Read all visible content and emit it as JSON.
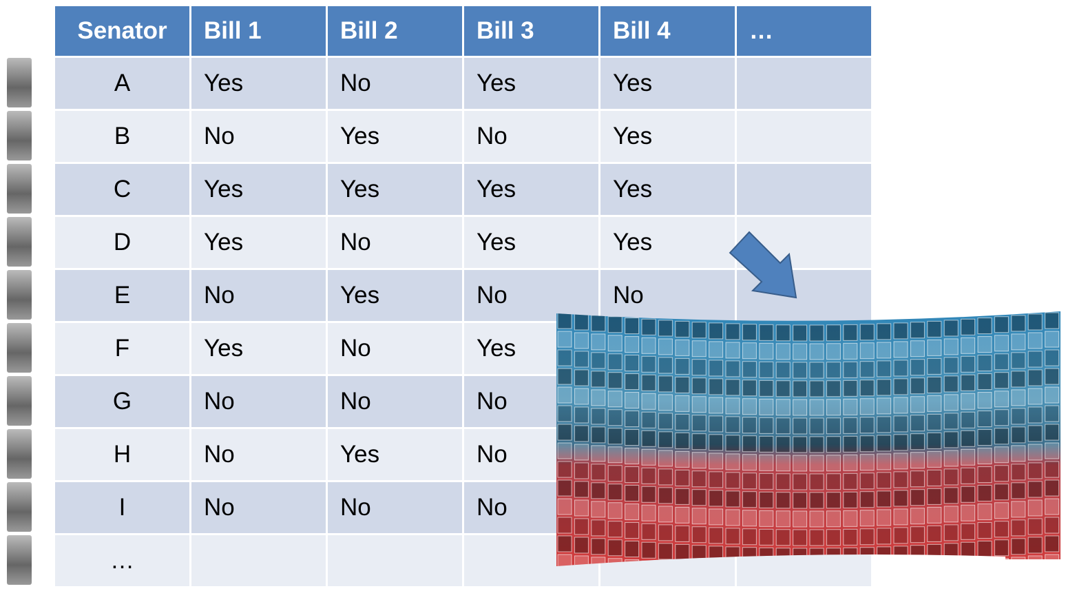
{
  "table": {
    "header": [
      "Senator",
      "Bill 1",
      "Bill 2",
      "Bill 3",
      "Bill 4",
      "…"
    ],
    "rows": [
      [
        "A",
        "Yes",
        "No",
        "Yes",
        "Yes"
      ],
      [
        "B",
        "No",
        "Yes",
        "No",
        "Yes"
      ],
      [
        "C",
        "Yes",
        "Yes",
        "Yes",
        "Yes"
      ],
      [
        "D",
        "Yes",
        "No",
        "Yes",
        "Yes"
      ],
      [
        "E",
        "No",
        "Yes",
        "No",
        "No"
      ],
      [
        "F",
        "Yes",
        "No",
        "Yes"
      ],
      [
        "G",
        "No",
        "No",
        "No"
      ],
      [
        "H",
        "No",
        "Yes",
        "No"
      ],
      [
        "I",
        "No",
        "No",
        "No"
      ],
      [
        "…"
      ]
    ]
  }
}
